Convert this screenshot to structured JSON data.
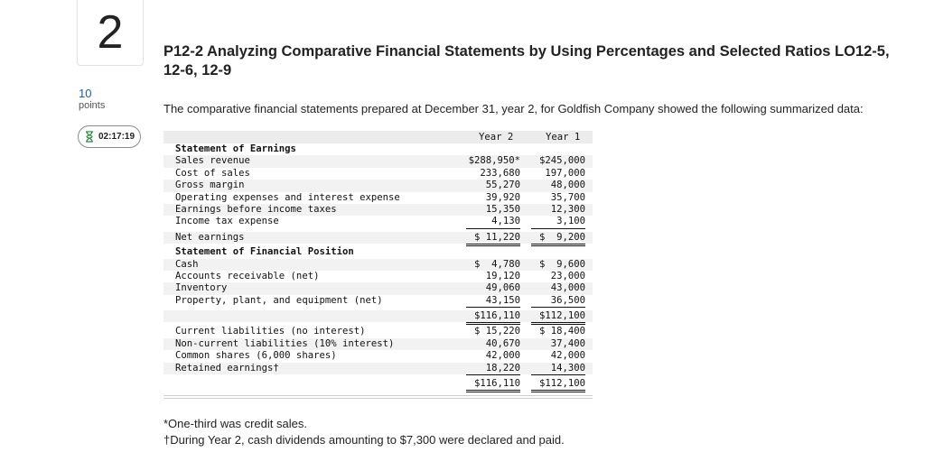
{
  "question": {
    "number": "2",
    "points_value": "10",
    "points_label": "points",
    "timer": "02:17:19",
    "title": "P12-2 Analyzing Comparative Financial Statements by Using Percentages and Selected Ratios LO12-5, 12-6, 12-9",
    "intro": "The comparative financial statements prepared at December 31, year 2, for Goldfish Company showed the following summarized data:"
  },
  "table": {
    "col1": "Year 2",
    "col2": "Year 1",
    "earnings_heading": "Statement of Earnings",
    "earnings_rows": [
      {
        "label": "Sales revenue",
        "y2": "$288,950*",
        "y1": "$245,000"
      },
      {
        "label": "Cost of sales",
        "y2": "233,680",
        "y1": "197,000"
      },
      {
        "label": "Gross margin",
        "y2": "55,270",
        "y1": "48,000"
      },
      {
        "label": "Operating expenses and interest expense",
        "y2": "39,920",
        "y1": "35,700"
      },
      {
        "label": "Earnings before income taxes",
        "y2": "15,350",
        "y1": "12,300"
      },
      {
        "label": "Income tax expense",
        "y2": "4,130",
        "y1": "3,100"
      }
    ],
    "net_earnings": {
      "label": "Net earnings",
      "y2": "$ 11,220",
      "y1": "$  9,200"
    },
    "position_heading": "Statement of Financial Position",
    "asset_rows": [
      {
        "label": "Cash",
        "y2": "$  4,780",
        "y1": "$  9,600"
      },
      {
        "label": "Accounts receivable (net)",
        "y2": "19,120",
        "y1": "23,000"
      },
      {
        "label": "Inventory",
        "y2": "49,060",
        "y1": "43,000"
      },
      {
        "label": "Property, plant, and equipment (net)",
        "y2": "43,150",
        "y1": "36,500"
      }
    ],
    "total_assets": {
      "y2": "$116,110",
      "y1": "$112,100"
    },
    "liability_rows": [
      {
        "label": "Current liabilities (no interest)",
        "y2": "$ 15,220",
        "y1": "$ 18,400"
      },
      {
        "label": "Non-current liabilities (10% interest)",
        "y2": "40,670",
        "y1": "37,400"
      },
      {
        "label": "Common shares (6,000 shares)",
        "y2": "42,000",
        "y1": "42,000"
      },
      {
        "label": "Retained earnings†",
        "y2": "18,220",
        "y1": "14,300"
      }
    ],
    "total_liabilities_equity": {
      "y2": "$116,110",
      "y1": "$112,100"
    }
  },
  "notes": {
    "note1": "*One-third was credit sales.",
    "note2": "†During Year 2, cash dividends amounting to $7,300 were declared and paid."
  }
}
